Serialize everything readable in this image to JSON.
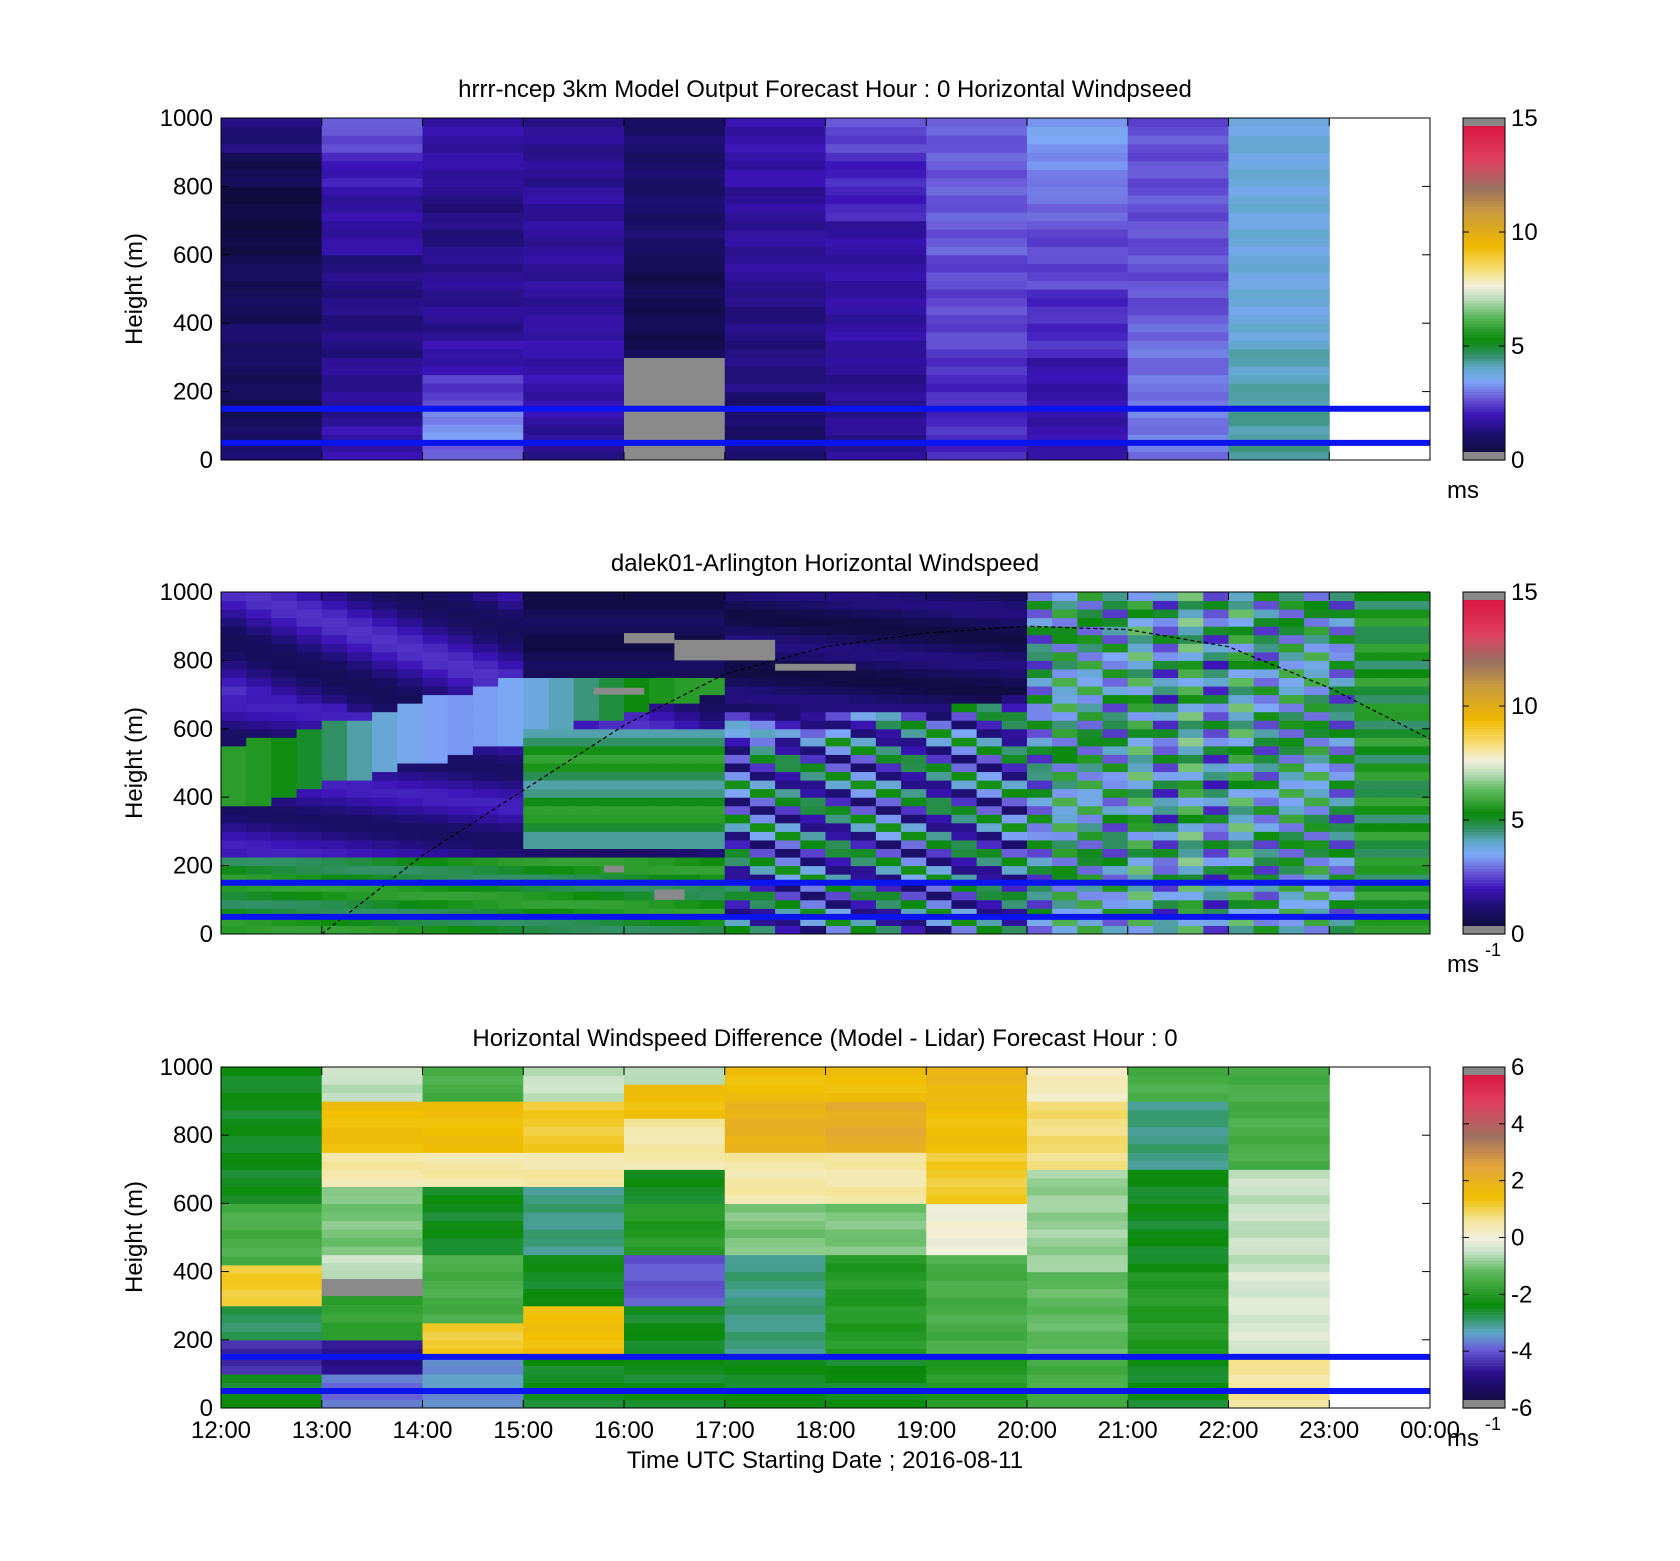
{
  "figure": {
    "xlabel": "Time UTC  Starting Date ; 2016-08-11",
    "x_ticks": [
      "12:00",
      "13:00",
      "14:00",
      "15:00",
      "16:00",
      "17:00",
      "18:00",
      "19:00",
      "20:00",
      "21:00",
      "22:00",
      "23:00",
      "00:00"
    ]
  },
  "chart_data": [
    {
      "type": "heatmap",
      "title": "hrrr-ncep 3km Model Output   Forecast Hour : 0 Horizontal Windpseed",
      "ylabel": "Height (m)",
      "ylim": [
        0,
        1000
      ],
      "y_ticks": [
        "0",
        "200",
        "400",
        "600",
        "800",
        "1000"
      ],
      "x_range_hours": [
        12,
        24
      ],
      "colorbar": {
        "min": 0,
        "max": 15,
        "ticks": [
          "0",
          "5",
          "10",
          "15"
        ],
        "unit": "ms",
        "unit_superscript": ""
      },
      "reference_lines_m": [
        50,
        150
      ],
      "columns": [
        {
          "start": 12,
          "end": 13,
          "cells": [
            [
              0,
              100,
              1.0
            ],
            [
              100,
              200,
              0.6
            ],
            [
              200,
              300,
              0.8
            ],
            [
              300,
              400,
              1.0
            ],
            [
              400,
              600,
              0.7
            ],
            [
              600,
              800,
              0.3
            ],
            [
              800,
              900,
              0.6
            ],
            [
              900,
              1000,
              1.2
            ]
          ]
        },
        {
          "start": 13,
          "end": 14,
          "cells": [
            [
              0,
              100,
              1.8
            ],
            [
              100,
              300,
              1.5
            ],
            [
              300,
              600,
              1.3
            ],
            [
              600,
              800,
              1.7
            ],
            [
              800,
              900,
              2.0
            ],
            [
              900,
              1000,
              2.6
            ]
          ]
        },
        {
          "start": 14,
          "end": 15,
          "cells": [
            [
              0,
              60,
              2.8
            ],
            [
              60,
              150,
              3.2
            ],
            [
              150,
              250,
              2.4
            ],
            [
              250,
              350,
              1.8
            ],
            [
              350,
              600,
              1.5
            ],
            [
              600,
              800,
              1.3
            ],
            [
              800,
              1000,
              1.7
            ]
          ]
        },
        {
          "start": 15,
          "end": 16,
          "cells": [
            [
              0,
              100,
              1.5
            ],
            [
              100,
              400,
              1.8
            ],
            [
              400,
              800,
              1.6
            ],
            [
              800,
              1000,
              1.5
            ]
          ]
        },
        {
          "start": 16,
          "end": 17,
          "cells": [
            [
              0,
              300,
              null
            ],
            [
              300,
              600,
              0.6
            ],
            [
              600,
              1000,
              1.0
            ]
          ]
        },
        {
          "start": 17,
          "end": 18,
          "cells": [
            [
              0,
              200,
              1.0
            ],
            [
              200,
              500,
              1.3
            ],
            [
              500,
              800,
              1.6
            ],
            [
              800,
              1000,
              1.8
            ]
          ]
        },
        {
          "start": 18,
          "end": 19,
          "cells": [
            [
              0,
              300,
              1.5
            ],
            [
              300,
              700,
              1.7
            ],
            [
              700,
              900,
              2.1
            ],
            [
              900,
              1000,
              2.5
            ]
          ]
        },
        {
          "start": 19,
          "end": 20,
          "cells": [
            [
              0,
              300,
              2.2
            ],
            [
              300,
              600,
              2.5
            ],
            [
              600,
              1000,
              2.7
            ]
          ]
        },
        {
          "start": 20,
          "end": 21,
          "cells": [
            [
              0,
              300,
              1.8
            ],
            [
              300,
              500,
              2.2
            ],
            [
              500,
              700,
              2.5
            ],
            [
              700,
              800,
              2.9
            ],
            [
              800,
              900,
              3.1
            ],
            [
              900,
              1000,
              3.4
            ]
          ]
        },
        {
          "start": 21,
          "end": 22,
          "cells": [
            [
              0,
              200,
              3.0
            ],
            [
              200,
              400,
              2.9
            ],
            [
              400,
              1000,
              2.6
            ]
          ]
        },
        {
          "start": 22,
          "end": 23,
          "cells": [
            [
              0,
              200,
              4.3
            ],
            [
              200,
              350,
              4.1
            ],
            [
              350,
              1000,
              3.8
            ]
          ]
        }
      ]
    },
    {
      "type": "heatmap",
      "title": "dalek01-Arlington  Horizontal Windspeed",
      "ylabel": "Height (m)",
      "ylim": [
        0,
        1000
      ],
      "y_ticks": [
        "0",
        "200",
        "400",
        "600",
        "800",
        "1000"
      ],
      "x_range_hours": [
        12,
        24
      ],
      "colorbar": {
        "min": 0,
        "max": 15,
        "ticks": [
          "0",
          "5",
          "10",
          "15"
        ],
        "unit": "ms",
        "unit_superscript": "-1"
      },
      "reference_lines_m": [
        50,
        150
      ],
      "boundary_layer_curve": [
        [
          13.0,
          0
        ],
        [
          14.0,
          230
        ],
        [
          15.0,
          420
        ],
        [
          16.0,
          610
        ],
        [
          17.0,
          760
        ],
        [
          18.0,
          840
        ],
        [
          19.0,
          880
        ],
        [
          20.0,
          900
        ],
        [
          21.0,
          890
        ],
        [
          22.0,
          840
        ],
        [
          23.0,
          720
        ],
        [
          24.0,
          570
        ]
      ],
      "gap_patches": [
        [
          16.0,
          16.5,
          850,
          880
        ],
        [
          16.5,
          17.5,
          800,
          860
        ],
        [
          15.7,
          16.2,
          700,
          720
        ],
        [
          17.5,
          18.3,
          770,
          790
        ],
        [
          16.3,
          16.6,
          100,
          130
        ],
        [
          15.8,
          16.0,
          180,
          200
        ]
      ]
    },
    {
      "type": "heatmap",
      "title": "Horizontal Windspeed Difference (Model - Lidar) Forecast Hour : 0",
      "ylabel": "Height (m)",
      "ylim": [
        0,
        1000
      ],
      "y_ticks": [
        "0",
        "200",
        "400",
        "600",
        "800",
        "1000"
      ],
      "x_range_hours": [
        12,
        24
      ],
      "colorbar": {
        "min": -6,
        "max": 6,
        "ticks": [
          "-6",
          "-4",
          "-2",
          "0",
          "2",
          "4",
          "6"
        ],
        "unit": "ms",
        "unit_superscript": "-1"
      },
      "reference_lines_m": [
        50,
        150
      ],
      "columns": [
        {
          "start": 12,
          "end": 13,
          "cells": [
            [
              0,
              100,
              -2.5
            ],
            [
              100,
              200,
              -4.5
            ],
            [
              200,
              300,
              -2.8
            ],
            [
              300,
              420,
              1.2
            ],
            [
              420,
              600,
              -1.5
            ],
            [
              600,
              1000,
              -2.5
            ]
          ]
        },
        {
          "start": 13,
          "end": 14,
          "cells": [
            [
              0,
              100,
              -3.8
            ],
            [
              100,
              200,
              -4.8
            ],
            [
              200,
              330,
              -1.8
            ],
            [
              330,
              380,
              null
            ],
            [
              380,
              450,
              -0.5
            ],
            [
              450,
              650,
              -1.0
            ],
            [
              650,
              750,
              0.5
            ],
            [
              750,
              900,
              1.5
            ],
            [
              900,
              1000,
              -0.5
            ]
          ]
        },
        {
          "start": 14,
          "end": 15,
          "cells": [
            [
              0,
              150,
              -3.5
            ],
            [
              150,
              250,
              1.2
            ],
            [
              250,
              450,
              -1.5
            ],
            [
              450,
              650,
              -2.5
            ],
            [
              650,
              750,
              0.5
            ],
            [
              750,
              900,
              1.5
            ],
            [
              900,
              1000,
              -1.5
            ]
          ]
        },
        {
          "start": 15,
          "end": 16,
          "cells": [
            [
              0,
              150,
              -2.5
            ],
            [
              150,
              300,
              1.5
            ],
            [
              300,
              450,
              -2.5
            ],
            [
              450,
              650,
              -3.0
            ],
            [
              650,
              750,
              0.5
            ],
            [
              750,
              900,
              1.2
            ],
            [
              900,
              1000,
              -0.5
            ]
          ]
        },
        {
          "start": 16,
          "end": 17,
          "cells": [
            [
              0,
              150,
              -2.5
            ],
            [
              150,
              300,
              -2.5
            ],
            [
              300,
              450,
              -4.0
            ],
            [
              450,
              600,
              -2.0
            ],
            [
              600,
              700,
              -2.5
            ],
            [
              700,
              850,
              0.5
            ],
            [
              850,
              950,
              1.5
            ],
            [
              950,
              1000,
              -0.5
            ]
          ]
        },
        {
          "start": 17,
          "end": 18,
          "cells": [
            [
              0,
              150,
              -2.5
            ],
            [
              150,
              450,
              -3.0
            ],
            [
              450,
              600,
              -1.0
            ],
            [
              600,
              750,
              0.5
            ],
            [
              750,
              900,
              2.0
            ],
            [
              900,
              1000,
              1.5
            ]
          ]
        },
        {
          "start": 18,
          "end": 19,
          "cells": [
            [
              0,
              150,
              -2.5
            ],
            [
              150,
              450,
              -2.0
            ],
            [
              450,
              600,
              -1.0
            ],
            [
              600,
              750,
              0.5
            ],
            [
              750,
              900,
              2.2
            ],
            [
              900,
              1000,
              1.5
            ]
          ]
        },
        {
          "start": 19,
          "end": 20,
          "cells": [
            [
              0,
              150,
              -2.0
            ],
            [
              150,
              450,
              -1.5
            ],
            [
              450,
              600,
              0.0
            ],
            [
              600,
              750,
              1.2
            ],
            [
              750,
              900,
              1.5
            ],
            [
              900,
              1000,
              1.8
            ]
          ]
        },
        {
          "start": 20,
          "end": 21,
          "cells": [
            [
              0,
              150,
              -1.5
            ],
            [
              150,
              400,
              -1.2
            ],
            [
              400,
              700,
              -0.8
            ],
            [
              700,
              900,
              0.8
            ],
            [
              900,
              1000,
              0.3
            ]
          ]
        },
        {
          "start": 21,
          "end": 22,
          "cells": [
            [
              0,
              150,
              -2.5
            ],
            [
              150,
              400,
              -2.0
            ],
            [
              400,
              700,
              -2.5
            ],
            [
              700,
              900,
              -3.0
            ],
            [
              900,
              1000,
              -1.5
            ]
          ]
        },
        {
          "start": 22,
          "end": 23,
          "cells": [
            [
              0,
              150,
              0.6
            ],
            [
              150,
              400,
              -0.3
            ],
            [
              400,
              700,
              -0.5
            ],
            [
              700,
              1000,
              -1.5
            ]
          ]
        }
      ]
    }
  ]
}
